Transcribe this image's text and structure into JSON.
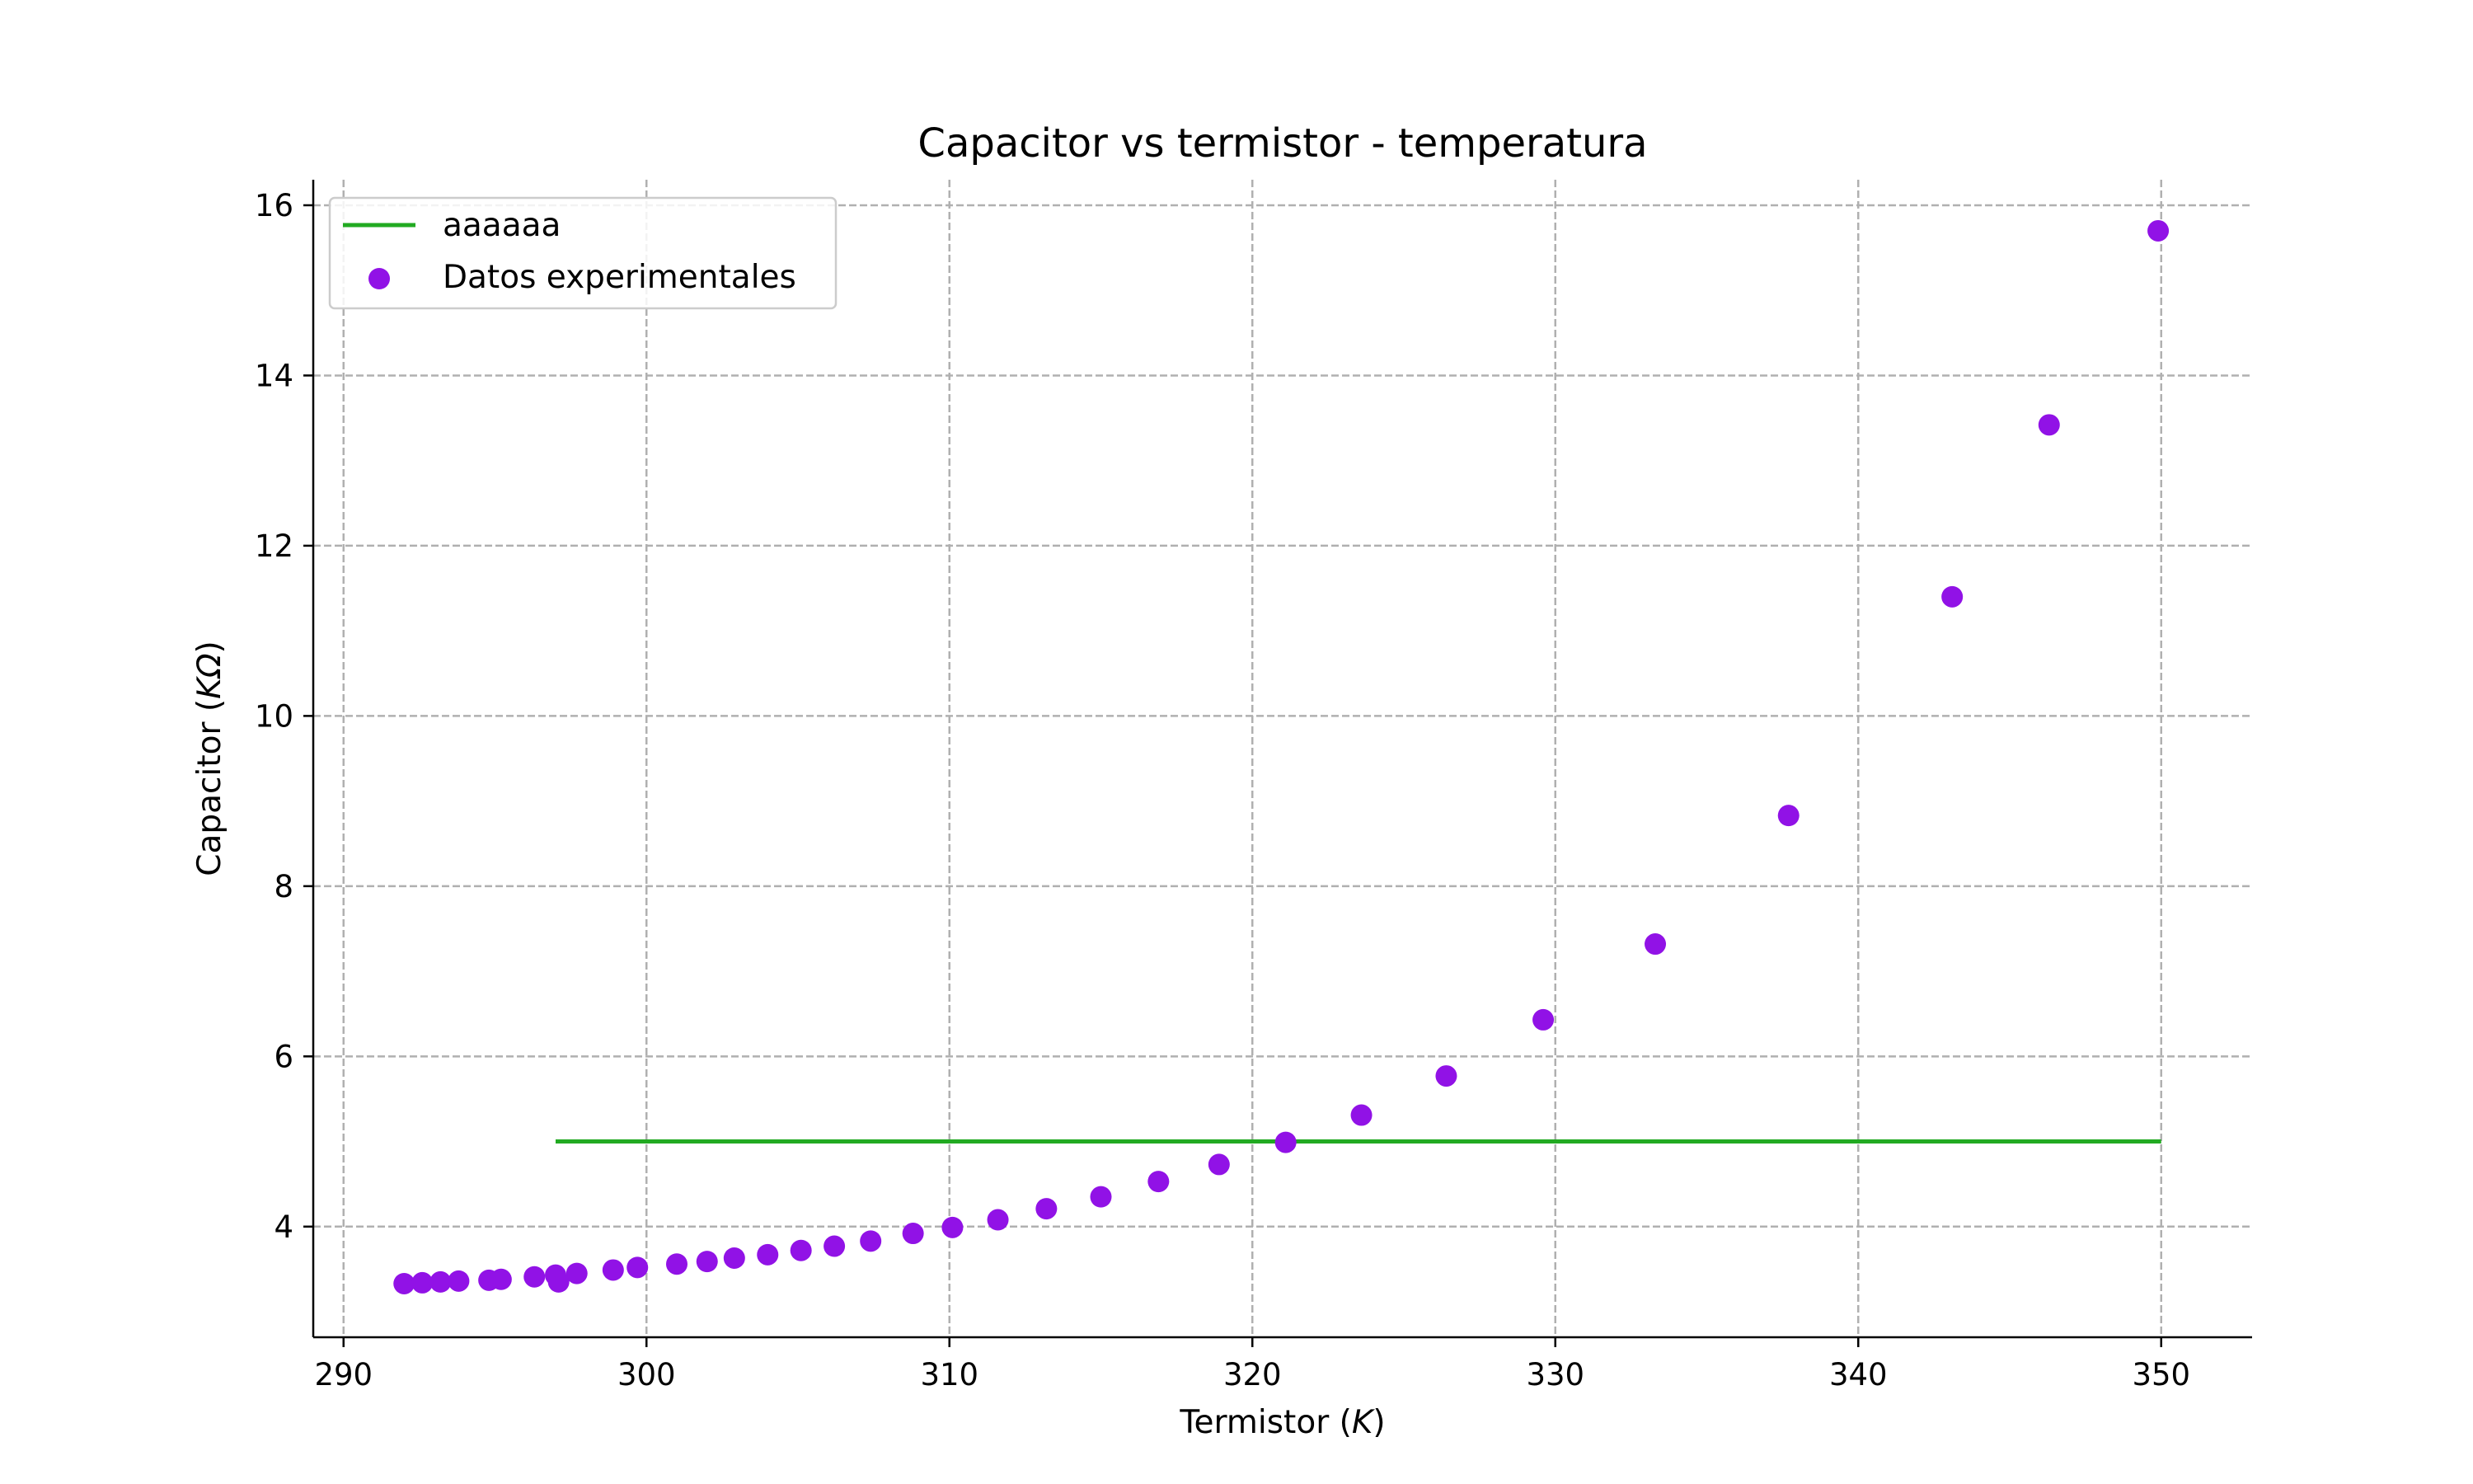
{
  "chart_data": {
    "type": "scatter",
    "title": "Capacitor vs termistor - temperatura",
    "xlabel": {
      "prefix": "Termistor (",
      "var": "K",
      "suffix": ")"
    },
    "ylabel": {
      "prefix": "Capacitor (",
      "var": "KΩ",
      "suffix": ")"
    },
    "xlim": [
      289,
      353
    ],
    "ylim": [
      2.7,
      16.3
    ],
    "xticks": [
      290,
      300,
      310,
      320,
      330,
      340,
      350
    ],
    "yticks": [
      4,
      6,
      8,
      10,
      12,
      14,
      16
    ],
    "grid": true,
    "legend_position": "top-left",
    "series": [
      {
        "name": "aaaaaa",
        "kind": "line",
        "color": "#22aa22",
        "x": [
          297,
          350
        ],
        "y": [
          5.0,
          5.0
        ]
      },
      {
        "name": "Datos experimentales",
        "kind": "scatter",
        "color": "#9112e6",
        "x": [
          292.0,
          292.6,
          293.2,
          293.8,
          294.8,
          295.2,
          296.3,
          297.0,
          297.1,
          297.7,
          298.9,
          299.7,
          301.0,
          302.0,
          302.9,
          304.0,
          305.1,
          306.2,
          307.4,
          308.8,
          310.1,
          311.6,
          313.2,
          315.0,
          316.9,
          318.9,
          321.1,
          323.6,
          326.4,
          329.6,
          333.3,
          337.7,
          343.1,
          346.3,
          349.9
        ],
        "y": [
          3.33,
          3.34,
          3.35,
          3.36,
          3.37,
          3.38,
          3.41,
          3.43,
          3.35,
          3.45,
          3.49,
          3.52,
          3.56,
          3.59,
          3.63,
          3.67,
          3.72,
          3.77,
          3.83,
          3.92,
          3.99,
          4.08,
          4.21,
          4.35,
          4.53,
          4.73,
          4.99,
          5.31,
          5.77,
          6.43,
          7.32,
          8.83,
          11.4,
          13.42,
          15.7
        ]
      }
    ]
  }
}
